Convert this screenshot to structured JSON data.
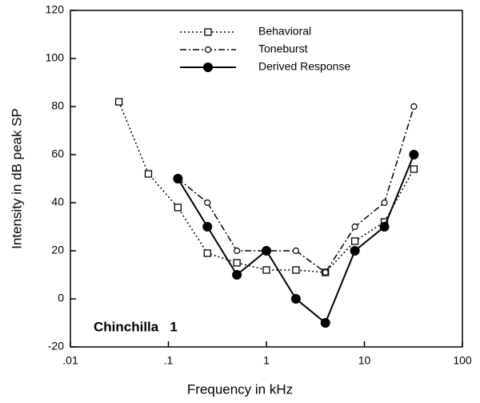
{
  "chart_data": {
    "type": "line",
    "xlabel": "Frequency in kHz",
    "ylabel": "Intensity in dB peak SP",
    "annotation": "Chinchilla   1",
    "x": [
      0.03125,
      0.0625,
      0.125,
      0.25,
      0.5,
      1,
      2,
      4,
      8,
      16,
      32
    ],
    "xscale": "log",
    "xlim": [
      0.01,
      100
    ],
    "xticks": [
      {
        "value": 0.01,
        "label": ".01"
      },
      {
        "value": 0.1,
        "label": ".1"
      },
      1,
      10,
      100
    ],
    "ylim": [
      -20,
      120
    ],
    "yticks": [
      -20,
      0,
      20,
      40,
      60,
      80,
      100,
      120
    ],
    "legend": "top",
    "series": [
      {
        "name": "Behavioral",
        "color": "#000000",
        "dash": "dotted",
        "marker": "square",
        "values": [
          82,
          52,
          38,
          19,
          15,
          12,
          12,
          11,
          24,
          32,
          54
        ]
      },
      {
        "name": "Toneburst",
        "color": "#000000",
        "dash": "dashdot",
        "marker": "circle",
        "values": [
          null,
          null,
          50,
          40,
          20,
          20,
          20,
          11,
          30,
          40,
          80
        ]
      },
      {
        "name": "Derived Response",
        "color": "#000000",
        "dash": "solid",
        "marker": "filled-circle",
        "values": [
          null,
          null,
          50,
          30,
          10,
          20,
          0,
          -10,
          20,
          30,
          60
        ]
      }
    ]
  }
}
